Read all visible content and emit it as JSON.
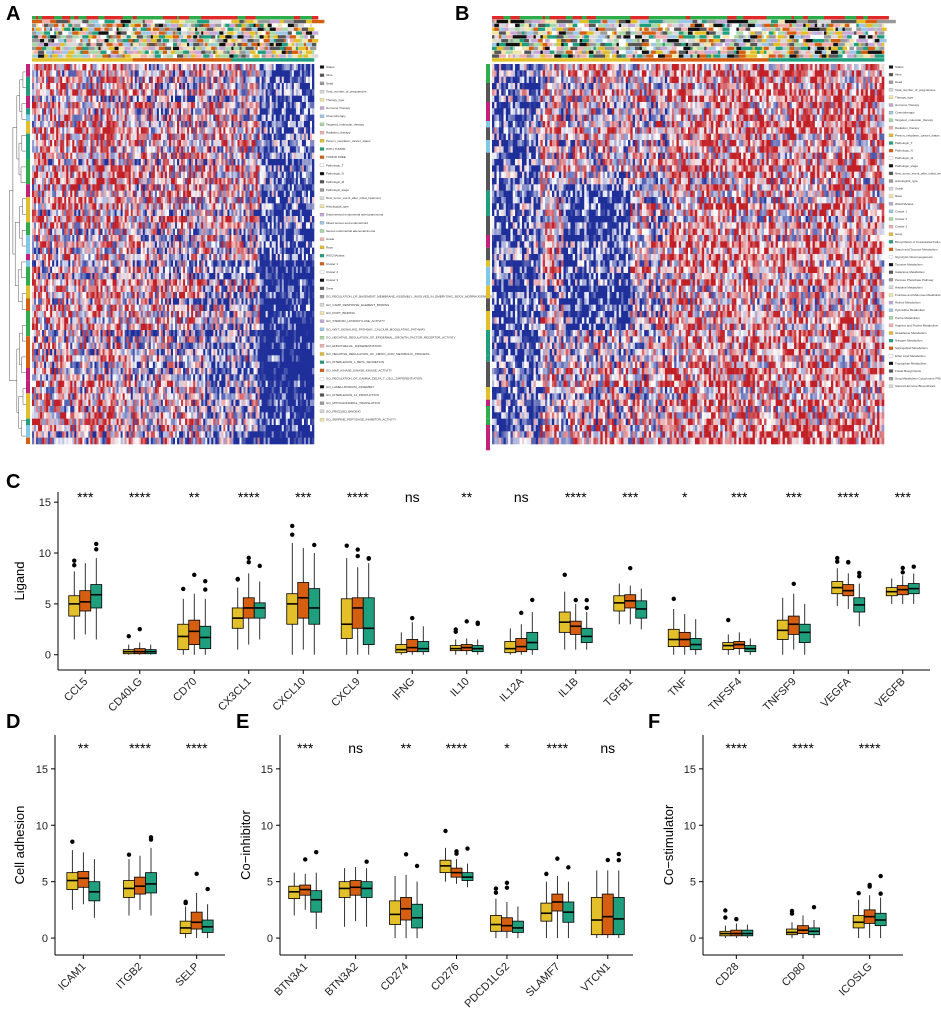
{
  "panels": {
    "A": "A",
    "B": "B",
    "C": "C",
    "D": "D",
    "E": "E",
    "F": "F"
  },
  "colors": {
    "group1": "#e3bf2a",
    "group2": "#d55e10",
    "group3": "#1f9f7e",
    "heat_low": "#1f2f9a",
    "heat_mid": "#ffffff",
    "heat_high": "#c21f26"
  },
  "heatmap_legend_A": [
    "Status",
    "Alive",
    "Dead",
    "Total_number_of_pregnancies",
    "Therapy_type",
    "Hormone Therapy",
    "Chemotherapy",
    "Targeted_molecular_therapy",
    "Radiation_therapy",
    "Person_neoplasm_cancer_status",
    "WITH TUMOR",
    "TUMOR FREE",
    "Pathologic_T",
    "Pathologic_N",
    "Pathologic_M",
    "Pathologic_stage",
    "New_tumor_event_after_initial_treatment",
    "Histological_type",
    "Endometrioid endometrial adenocarcinoma",
    "Mixed serous and endometrioid",
    "Serous endometrial adenocarcinoma",
    "Grade",
    "Race",
    "WGCNAclass",
    "Cluster 1",
    "Cluster 2",
    "Cluster 3",
    "Gene",
    "GO_REGULATION_OF_BASEMENT_MEMBRANE_ASSEMBLY_INVOLVED_IN_EMBRYONIC_BODY_MORPHOGENESIS",
    "GO_CAMP_RESPONSE_ELEMENT_BINDING",
    "GO_FIXPT_BINDING",
    "GO_STEROID_HYDROXYLASE_ACTIVITY",
    "GO_WNT_SIGNALING_PATHWAY_CALCIUM_MODULATING_PATHWAY",
    "GO_NEGATIVE_REGULATION_OF_EPIDERMAL_GROWTH_FACTOR_RECEPTOR_ACTIVITY",
    "GO_ENDOTHELIAL_DIFFERENTIATION",
    "GO_NEGATIVE_REGULATION_OF_AMINO_ACID_METABOLIC_PROCESS",
    "GO_INTERLEUKIN_1_BETA_SECRETION",
    "GO_MAP_KINASE_KINASE_KINASE_ACTIVITY",
    "GO_REGULATION_OF_GAMMA_DELTA_T_CELL_DIFFERENTIATION",
    "GO_LAMELLIPODIUM_ASSEMBLY",
    "GO_INTERLEUKIN_12_PRODUCTION",
    "GO_MITOCHONDRIAL_TRANSLATION",
    "GO_FRIZZLED_BINDING",
    "GO_SERPINE_PEPTIDASE_INHIBITOR_ACTIVITY"
  ],
  "heatmap_legend_B": [
    "Status",
    "Alive",
    "Dead",
    "Total_number_of_pregnancies",
    "Therapy_type",
    "Hormone Therapy",
    "Chemotherapy",
    "Targeted_molecular_therapy",
    "Radiation_therapy",
    "Person_neoplasm_cancer_status",
    "Pathologic_T",
    "Pathologic_N",
    "Pathologic_M",
    "Pathologic_stage",
    "New_tumor_event_after_initial_treatment",
    "Histological_type",
    "Grade",
    "Race",
    "WGCNAclass",
    "Cluster 1",
    "Cluster 2",
    "Cluster 3",
    "Gene",
    "Biosynthesis of Unsaturated Fatty Acids",
    "Starch and Sucrose Metabolism",
    "Glycolysis Gluconeogenesis",
    "Tyrosine Metabolism",
    "Galactose Metabolism",
    "Pentose Phosphate Pathway",
    "Histidine Metabolism",
    "Fructose and Mannose Metabolism",
    "Retinol Metabolism",
    "Pyrimidine Metabolism",
    "Purine Metabolism",
    "Arginine and Proline Metabolism",
    "Glutathione Metabolism",
    "Nitrogen Metabolism",
    "Sphingolipid Metabolism",
    "Ether Lipid Metabolism",
    "Tryptophan Metabolism",
    "Folate Biosynthesis",
    "Drug Metabolism Cytochrome P450",
    "Steroid Hormone Biosynthesis"
  ],
  "chart_data": [
    {
      "panel": "C",
      "type": "boxplot",
      "ylabel": "Ligand",
      "ylim": [
        -1.5,
        16
      ],
      "yticks": [
        0,
        5,
        10,
        15
      ],
      "groups": [
        "Cluster 1",
        "Cluster 2",
        "Cluster 3"
      ],
      "categories": [
        "CCL5",
        "CD40LG",
        "CD70",
        "CX3CL1",
        "CXCL10",
        "CXCL9",
        "IFNG",
        "IL10",
        "IL12A",
        "IL1B",
        "TGFB1",
        "TNF",
        "TNFSF4",
        "TNFSF9",
        "VEGFA",
        "VEGFB"
      ],
      "significance": [
        "***",
        "****",
        "**",
        "****",
        "***",
        "****",
        "ns",
        "**",
        "ns",
        "****",
        "***",
        "*",
        "***",
        "***",
        "****",
        "***"
      ],
      "boxes": [
        [
          [
            1.5,
            3.8,
            5.0,
            5.8,
            8.2
          ],
          [
            2.0,
            4.3,
            5.2,
            6.3,
            9.0
          ],
          [
            1.5,
            4.6,
            5.9,
            6.9,
            9.5
          ]
        ],
        [
          [
            0,
            0.1,
            0.3,
            0.5,
            1.0
          ],
          [
            0,
            0.1,
            0.3,
            0.6,
            1.2
          ],
          [
            0,
            0.1,
            0.3,
            0.5,
            1.0
          ]
        ],
        [
          [
            0,
            0.5,
            1.8,
            3.0,
            5.5
          ],
          [
            0,
            1.0,
            2.3,
            3.4,
            6.0
          ],
          [
            0,
            0.6,
            1.7,
            2.8,
            5.5
          ]
        ],
        [
          [
            0.5,
            2.6,
            3.6,
            4.6,
            6.6
          ],
          [
            1.0,
            3.6,
            4.6,
            5.6,
            8.0
          ],
          [
            1.5,
            3.6,
            4.6,
            5.1,
            7.2
          ]
        ],
        [
          [
            0,
            3.0,
            5.0,
            6.0,
            11.0
          ],
          [
            0.5,
            3.6,
            5.6,
            7.1,
            10.5
          ],
          [
            0,
            3.0,
            4.6,
            6.5,
            10.0
          ]
        ],
        [
          [
            0,
            1.6,
            3.0,
            5.5,
            9.5
          ],
          [
            0,
            2.6,
            4.6,
            5.6,
            8.6
          ],
          [
            0,
            1.0,
            2.6,
            5.6,
            9.0
          ]
        ],
        [
          [
            0,
            0.2,
            0.5,
            1.0,
            2.2
          ],
          [
            0,
            0.3,
            0.7,
            1.5,
            3.2
          ],
          [
            0,
            0.3,
            0.6,
            1.3,
            2.8
          ]
        ],
        [
          [
            0,
            0.4,
            0.6,
            0.9,
            1.5
          ],
          [
            0,
            0.4,
            0.7,
            1.0,
            1.6
          ],
          [
            0,
            0.3,
            0.6,
            0.9,
            1.5
          ]
        ],
        [
          [
            0,
            0.2,
            0.6,
            1.3,
            2.6
          ],
          [
            0,
            0.3,
            0.8,
            1.6,
            3.0
          ],
          [
            0,
            0.5,
            1.2,
            2.2,
            4.2
          ]
        ],
        [
          [
            0.5,
            2.2,
            3.2,
            4.2,
            6.2
          ],
          [
            0.5,
            2.0,
            2.8,
            3.3,
            5.0
          ],
          [
            0.5,
            1.2,
            1.8,
            2.6,
            4.2
          ]
        ],
        [
          [
            3.0,
            4.3,
            5.1,
            5.8,
            7.0
          ],
          [
            3.0,
            4.6,
            5.3,
            5.9,
            6.8
          ],
          [
            2.5,
            3.6,
            4.5,
            5.3,
            6.5
          ]
        ],
        [
          [
            0,
            0.8,
            1.5,
            2.5,
            4.5
          ],
          [
            0,
            0.8,
            1.5,
            2.2,
            4.0
          ],
          [
            0,
            0.5,
            1.0,
            1.6,
            3.5
          ]
        ],
        [
          [
            0,
            0.5,
            0.9,
            1.2,
            2.0
          ],
          [
            0,
            0.6,
            1.0,
            1.3,
            2.2
          ],
          [
            0,
            0.3,
            0.6,
            0.9,
            1.6
          ]
        ],
        [
          [
            0,
            1.5,
            2.4,
            3.4,
            5.6
          ],
          [
            0.5,
            2.0,
            3.0,
            3.8,
            6.0
          ],
          [
            0,
            1.2,
            2.2,
            3.0,
            5.0
          ]
        ],
        [
          [
            4.8,
            6.0,
            6.6,
            7.2,
            8.5
          ],
          [
            4.5,
            5.8,
            6.3,
            6.9,
            8.0
          ],
          [
            2.8,
            4.2,
            4.9,
            5.6,
            7.0
          ]
        ],
        [
          [
            5.0,
            5.8,
            6.2,
            6.6,
            7.5
          ],
          [
            5.0,
            5.9,
            6.4,
            6.8,
            7.8
          ],
          [
            5.0,
            6.0,
            6.5,
            7.0,
            8.0
          ]
        ]
      ]
    },
    {
      "panel": "D",
      "type": "boxplot",
      "ylabel": "Cell adhesion",
      "ylim": [
        -1.5,
        18
      ],
      "yticks": [
        0,
        5,
        10,
        15
      ],
      "groups": [
        "Cluster 1",
        "Cluster 2",
        "Cluster 3"
      ],
      "categories": [
        "ICAM1",
        "ITGB2",
        "SELP"
      ],
      "significance": [
        "**",
        "****",
        "****"
      ],
      "boxes": [
        [
          [
            2.5,
            4.3,
            5.1,
            5.8,
            7.8
          ],
          [
            3.0,
            4.5,
            5.3,
            5.9,
            7.6
          ],
          [
            1.8,
            3.3,
            4.1,
            5.0,
            7.0
          ]
        ],
        [
          [
            2.0,
            3.6,
            4.4,
            5.1,
            7.0
          ],
          [
            2.5,
            3.9,
            4.6,
            5.4,
            7.3
          ],
          [
            2.0,
            4.0,
            4.8,
            5.8,
            8.0
          ]
        ],
        [
          [
            0,
            0.4,
            0.9,
            1.5,
            2.8
          ],
          [
            0,
            0.8,
            1.4,
            2.3,
            4.0
          ],
          [
            0,
            0.5,
            1.0,
            1.6,
            3.0
          ]
        ]
      ]
    },
    {
      "panel": "E",
      "type": "boxplot",
      "ylabel": "Co−inhibitor",
      "ylim": [
        -1.5,
        18
      ],
      "yticks": [
        0,
        5,
        10,
        15
      ],
      "groups": [
        "Cluster 1",
        "Cluster 2",
        "Cluster 3"
      ],
      "categories": [
        "BTN3A1",
        "BTN3A2",
        "CD274",
        "CD276",
        "PDCD1LG2",
        "SLAMF7",
        "VTCN1"
      ],
      "significance": [
        "***",
        "ns",
        "**",
        "****",
        "*",
        "****",
        "ns"
      ],
      "boxes": [
        [
          [
            2.0,
            3.5,
            4.1,
            4.6,
            5.8
          ],
          [
            2.5,
            3.8,
            4.3,
            4.7,
            5.7
          ],
          [
            0.8,
            2.3,
            3.4,
            4.2,
            5.8
          ]
        ],
        [
          [
            1.0,
            3.6,
            4.4,
            5.0,
            6.2
          ],
          [
            1.5,
            3.8,
            4.5,
            5.1,
            6.3
          ],
          [
            1.0,
            3.6,
            4.4,
            5.0,
            6.2
          ]
        ],
        [
          [
            0,
            1.2,
            2.1,
            3.3,
            5.5
          ],
          [
            0,
            1.6,
            2.6,
            3.6,
            5.6
          ],
          [
            0,
            0.9,
            1.8,
            3.0,
            5.0
          ]
        ],
        [
          [
            5.0,
            5.8,
            6.4,
            6.9,
            8.0
          ],
          [
            4.8,
            5.4,
            5.8,
            6.2,
            7.0
          ],
          [
            4.5,
            5.1,
            5.4,
            5.8,
            6.6
          ]
        ],
        [
          [
            0,
            0.6,
            1.2,
            2.0,
            3.5
          ],
          [
            0,
            0.6,
            1.1,
            1.8,
            3.2
          ],
          [
            0,
            0.5,
            0.9,
            1.5,
            2.8
          ]
        ],
        [
          [
            0,
            1.5,
            2.2,
            3.1,
            5.0
          ],
          [
            0,
            2.4,
            3.2,
            3.9,
            5.5
          ],
          [
            0,
            1.4,
            2.3,
            3.2,
            5.0
          ]
        ],
        [
          [
            0,
            0.3,
            1.6,
            3.6,
            6.0
          ],
          [
            0,
            0.3,
            1.9,
            3.9,
            6.0
          ],
          [
            0,
            0.3,
            1.7,
            3.6,
            6.0
          ]
        ]
      ]
    },
    {
      "panel": "F",
      "type": "boxplot",
      "ylabel": "Co−stimulator",
      "ylim": [
        -1.5,
        18
      ],
      "yticks": [
        0,
        5,
        10,
        15
      ],
      "groups": [
        "Cluster 1",
        "Cluster 2",
        "Cluster 3"
      ],
      "categories": [
        "CD28",
        "CD80",
        "ICOSLG"
      ],
      "significance": [
        "****",
        "****",
        "****"
      ],
      "boxes": [
        [
          [
            0,
            0.2,
            0.4,
            0.6,
            1.1
          ],
          [
            0,
            0.2,
            0.4,
            0.7,
            1.3
          ],
          [
            0,
            0.2,
            0.4,
            0.7,
            1.2
          ]
        ],
        [
          [
            0,
            0.3,
            0.5,
            0.8,
            1.4
          ],
          [
            0,
            0.4,
            0.7,
            1.1,
            2.0
          ],
          [
            0,
            0.3,
            0.6,
            0.9,
            1.6
          ]
        ],
        [
          [
            0,
            0.9,
            1.4,
            2.0,
            3.4
          ],
          [
            0,
            1.3,
            1.9,
            2.5,
            3.8
          ],
          [
            0,
            1.1,
            1.6,
            2.2,
            3.6
          ]
        ]
      ]
    }
  ]
}
